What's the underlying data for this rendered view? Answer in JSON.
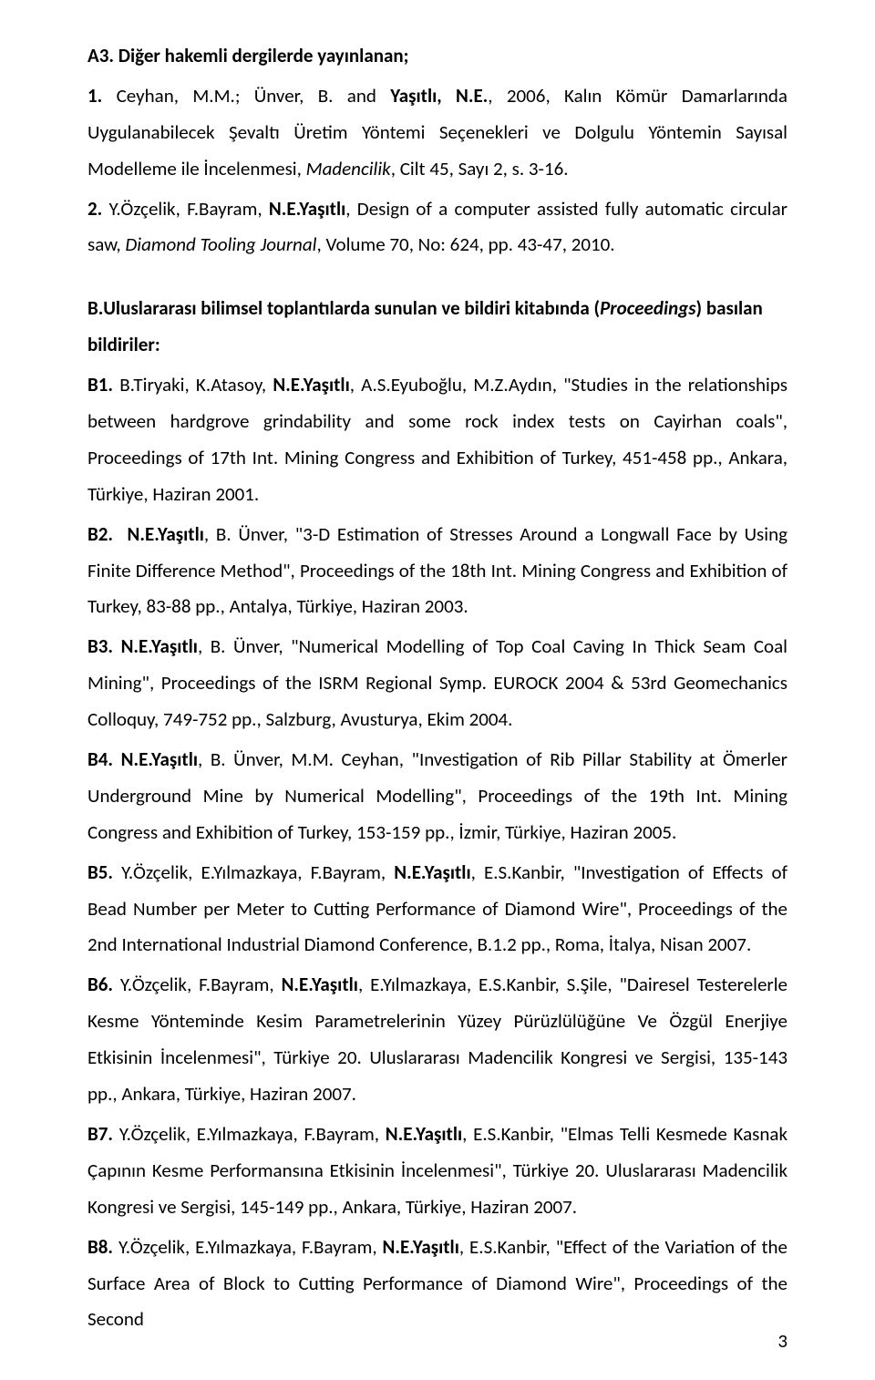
{
  "headings": {
    "a3": "A3. Diğer hakemli dergilerde yayınlanan;",
    "b_section": "B.Uluslararası bilimsel toplantılarda sunulan ve bildiri kitabında (",
    "b_section_proc": "Proceedings",
    "b_section_suffix": ") basılan bildiriler:"
  },
  "entries": {
    "a3_1_label": "1.",
    "a3_1_pre": " Ceyhan, M.M.; Ünver, B. and ",
    "a3_1_author": "Yaşıtlı, N.E.",
    "a3_1_post": ", 2006, Kalın Kömür Damarlarında Uygulanabilecek Şevaltı Üretim Yöntemi Seçenekleri ve Dolgulu Yöntemin Sayısal Modelleme ile İncelenmesi, ",
    "a3_1_journal": "Madencilik",
    "a3_1_tail": ", Cilt 45, Sayı 2, s. 3-16.",
    "a3_2_label": "2.",
    "a3_2_pre": " Y.Özçelik, F.Bayram, ",
    "a3_2_author": "N.E.Yaşıtlı",
    "a3_2_post": ", Design of a computer assisted fully automatic circular saw, ",
    "a3_2_journal": "Diamond Tooling Journal",
    "a3_2_tail": ", Volume 70, No: 624, pp. 43-47, 2010.",
    "b1_label": "B1.",
    "b1_pre": " B.Tiryaki, K.Atasoy, ",
    "b1_author": "N.E.Yaşıtlı",
    "b1_post": ", A.S.Eyuboğlu, M.Z.Aydın, \"Studies in the relationships between hardgrove grindability and some rock index tests on Cayirhan coals\", Proceedings of 17th Int. Mining Congress and Exhibition of Turkey, 451-458 pp., Ankara, Türkiye, Haziran 2001.",
    "b2_label": "B2.",
    "b2_author": "N.E.Yaşıtlı",
    "b2_post": ", B. Ünver, \"3-D Estimation of Stresses Around a Longwall Face by Using Finite Difference Method\", Proceedings of the 18th Int. Mining Congress and Exhibition of Turkey, 83-88 pp., Antalya, Türkiye, Haziran 2003.",
    "b3_label": "B3.",
    "b3_author": "N.E.Yaşıtlı",
    "b3_post": ", B. Ünver, \"Numerical Modelling of Top Coal Caving In Thick Seam Coal Mining\", Proceedings of the ISRM Regional Symp. EUROCK 2004 & 53rd Geomechanics Colloquy, 749-752 pp., Salzburg, Avusturya, Ekim 2004.",
    "b4_label": "B4.",
    "b4_author": "N.E.Yaşıtlı",
    "b4_post": ", B. Ünver, M.M. Ceyhan, \"Investigation of Rib Pillar Stability at Ömerler Underground Mine by Numerical Modelling\", Proceedings of the 19th Int. Mining Congress and Exhibition of Turkey, 153-159 pp., İzmir, Türkiye, Haziran 2005.",
    "b5_label": "B5.",
    "b5_pre": " Y.Özçelik, E.Yılmazkaya, F.Bayram, ",
    "b5_author": "N.E.Yaşıtlı",
    "b5_post": ", E.S.Kanbir, \"Investigation of Effects of Bead Number per Meter to Cutting Performance of Diamond Wire\", Proceedings of the 2nd International Industrial Diamond Conference, B.1.2 pp., Roma, İtalya, Nisan 2007.",
    "b6_label": "B6.",
    "b6_pre": " Y.Özçelik, F.Bayram, ",
    "b6_author": "N.E.Yaşıtlı",
    "b6_post": ", E.Yılmazkaya, E.S.Kanbir, S.Şile, \"Dairesel Testerelerle Kesme Yönteminde Kesim Parametrelerinin Yüzey Pürüzlülüğüne Ve Özgül Enerjiye Etkisinin İncelenmesi\", Türkiye 20. Uluslararası Madencilik Kongresi ve Sergisi, 135-143 pp., Ankara, Türkiye, Haziran 2007.",
    "b7_label": "B7.",
    "b7_pre": " Y.Özçelik, E.Yılmazkaya, F.Bayram, ",
    "b7_author": "N.E.Yaşıtlı",
    "b7_post": ", E.S.Kanbir, \"Elmas Telli Kesmede Kasnak Çapının Kesme Performansına Etkisinin İncelenmesi\", Türkiye 20. Uluslararası Madencilik Kongresi ve Sergisi, 145-149 pp., Ankara, Türkiye, Haziran 2007.",
    "b8_label": "B8.",
    "b8_pre": " Y.Özçelik, E.Yılmazkaya, F.Bayram, ",
    "b8_author": "N.E.Yaşıtlı",
    "b8_post": ", E.S.Kanbir, \"Effect of the Variation of the Surface Area of Block to Cutting Performance of Diamond Wire\", Proceedings of the Second"
  },
  "pageNumber": "3"
}
